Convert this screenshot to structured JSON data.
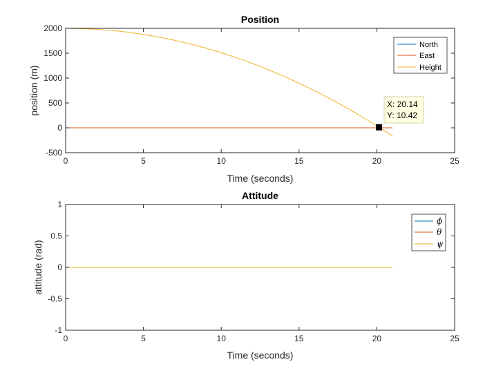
{
  "chart_data": [
    {
      "type": "line",
      "title": "Position",
      "xlabel": "Time (seconds)",
      "ylabel": "position (m)",
      "xlim": [
        0,
        25
      ],
      "ylim": [
        -500,
        2000
      ],
      "xticks": [
        "0",
        "5",
        "10",
        "15",
        "20",
        "25"
      ],
      "yticks": [
        "-500",
        "0",
        "500",
        "1000",
        "1500",
        "2000"
      ],
      "grid": false,
      "legend_position": "top-right",
      "series": [
        {
          "name": "North",
          "color": "#0072BD",
          "x": [
            0,
            21
          ],
          "y": [
            0,
            0
          ]
        },
        {
          "name": "East",
          "color": "#D95319",
          "x": [
            0,
            21
          ],
          "y": [
            0,
            0
          ]
        },
        {
          "name": "Height",
          "color": "#EDB120",
          "x": [
            0,
            1,
            2,
            3,
            4,
            5,
            6,
            7,
            8,
            9,
            10,
            11,
            12,
            13,
            14,
            15,
            16,
            17,
            18,
            19,
            20,
            20.14,
            21
          ],
          "y": [
            2000,
            1995,
            1980,
            1956,
            1922,
            1877,
            1823,
            1760,
            1686,
            1603,
            1510,
            1407,
            1294,
            1172,
            1039,
            897,
            745,
            584,
            412,
            231,
            40,
            10.42,
            -162
          ]
        }
      ],
      "datatip": {
        "x_text": "X: 20.14",
        "y_text": "Y: 10.42",
        "x": 20.14,
        "y": 10.42
      }
    },
    {
      "type": "line",
      "title": "Attitude",
      "xlabel": "Time (seconds)",
      "ylabel": "attitude (rad)",
      "xlim": [
        0,
        25
      ],
      "ylim": [
        -1,
        1
      ],
      "xticks": [
        "0",
        "5",
        "10",
        "15",
        "20",
        "25"
      ],
      "yticks": [
        "-1",
        "-0.5",
        "0",
        "0.5",
        "1"
      ],
      "grid": false,
      "legend_position": "top-right",
      "series": [
        {
          "name": "ϕ",
          "color": "#0072BD",
          "x": [
            0,
            21
          ],
          "y": [
            0,
            0
          ]
        },
        {
          "name": "θ",
          "color": "#D95319",
          "x": [
            0,
            21
          ],
          "y": [
            0,
            0
          ]
        },
        {
          "name": "ψ",
          "color": "#EDB120",
          "x": [
            0,
            21
          ],
          "y": [
            0,
            0
          ]
        }
      ]
    }
  ]
}
